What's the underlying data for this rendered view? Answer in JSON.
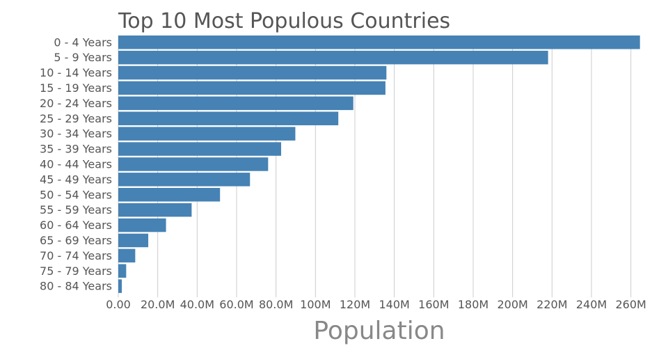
{
  "chart_data": {
    "type": "bar",
    "orientation": "horizontal",
    "title": "Top 10 Most Populous Countries",
    "xlabel": "Population",
    "ylabel": "",
    "xlim": [
      0,
      270000000
    ],
    "grid": true,
    "bar_color": "#4682b4",
    "categories": [
      "0 - 4 Years",
      "5 - 9 Years",
      "10 - 14 Years",
      "15 - 19 Years",
      "20 - 24 Years",
      "25 - 29 Years",
      "30 - 34 Years",
      "35 - 39 Years",
      "40 - 44 Years",
      "45 - 49 Years",
      "50 - 54 Years",
      "55 - 59 Years",
      "60 - 64 Years",
      "65 - 69 Years",
      "70 - 74 Years",
      "75 - 79 Years",
      "80 - 84 Years"
    ],
    "values": [
      264600000,
      218000000,
      136000000,
      135500000,
      119200000,
      111600000,
      89800000,
      82600000,
      76000000,
      66800000,
      51600000,
      37200000,
      24200000,
      15200000,
      8600000,
      4000000,
      1800000
    ],
    "x_ticks": [
      0,
      20000000,
      40000000,
      60000000,
      80000000,
      100000000,
      120000000,
      140000000,
      160000000,
      180000000,
      200000000,
      220000000,
      240000000,
      260000000
    ],
    "x_tick_labels": [
      "0.00",
      "20.0M",
      "40.0M",
      "60.0M",
      "80.0M",
      "100M",
      "120M",
      "140M",
      "160M",
      "180M",
      "200M",
      "220M",
      "240M",
      "260M"
    ]
  }
}
